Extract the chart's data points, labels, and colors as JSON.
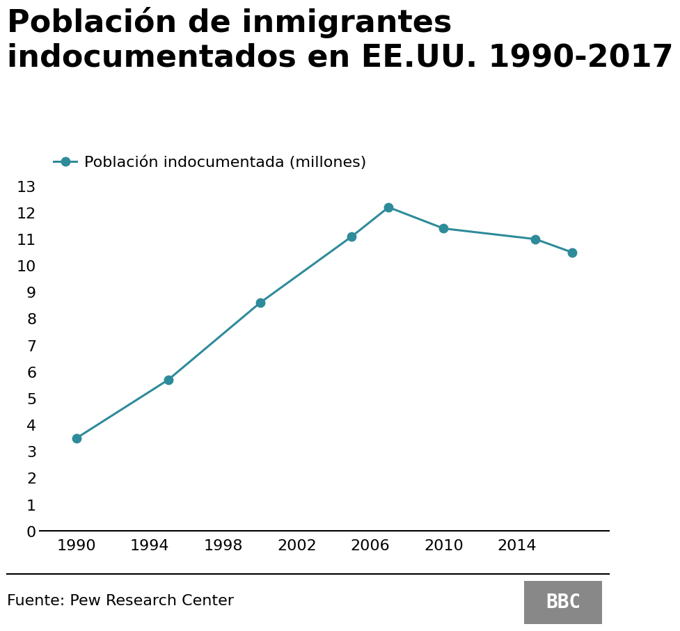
{
  "title": "Población de inmigrantes\nindocumentados en EE.UU. 1990-2017",
  "legend_label": "Población indocumentada (millones)",
  "source_text": "Fuente: Pew Research Center",
  "bbc_text": "BBC",
  "years": [
    1990,
    1995,
    2000,
    2005,
    2007,
    2010,
    2015,
    2017
  ],
  "values": [
    3.5,
    5.7,
    8.6,
    11.1,
    12.2,
    11.4,
    11.0,
    10.5
  ],
  "line_color": "#2E8B9A",
  "marker_color": "#2E8B9A",
  "background_color": "#ffffff",
  "title_fontsize": 32,
  "legend_fontsize": 16,
  "tick_fontsize": 16,
  "source_fontsize": 16,
  "ylim": [
    0,
    13
  ],
  "yticks": [
    0,
    1,
    2,
    3,
    4,
    5,
    6,
    7,
    8,
    9,
    10,
    11,
    12,
    13
  ],
  "xticks": [
    1990,
    1994,
    1998,
    2002,
    2006,
    2010,
    2014
  ],
  "xlim": [
    1988,
    2019
  ]
}
